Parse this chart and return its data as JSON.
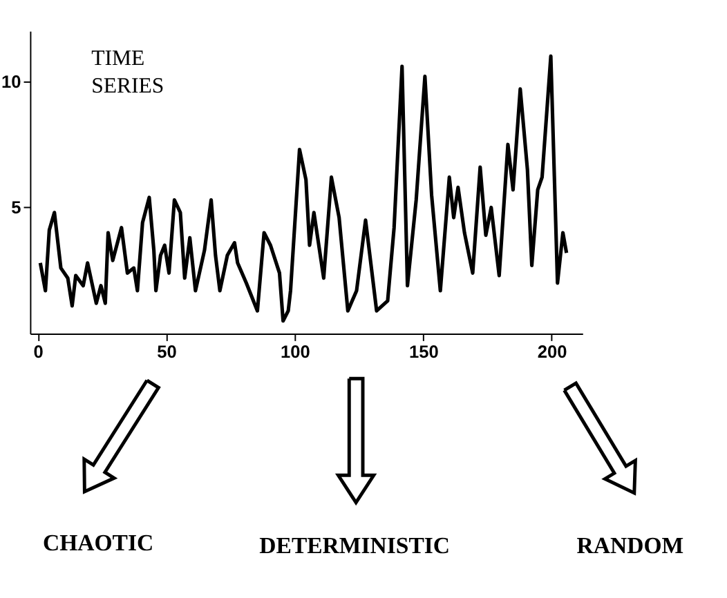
{
  "chart_data": {
    "type": "line",
    "x": [
      1,
      3,
      4.5,
      6.5,
      9,
      11.7,
      13.4,
      14.8,
      17.7,
      19.4,
      22.8,
      24.6,
      26.3,
      27.4,
      29.2,
      32.6,
      34.9,
      37.4,
      38.8,
      40.8,
      43.4,
      45.2,
      46,
      47.8,
      49.4,
      51.1,
      53.2,
      55.5,
      57.2,
      59.2,
      61.4,
      64.9,
      67.5,
      69.2,
      70.9,
      73.8,
      76.6,
      77.8,
      81.2,
      85.5,
      88.1,
      90.6,
      94.1,
      95.5,
      97.5,
      98.4,
      101.9,
      104.4,
      105.8,
      107.5,
      111.3,
      114.3,
      117.3,
      120.7,
      124.1,
      127.6,
      131.9,
      136.2,
      138.7,
      141.8,
      143.9,
      147.3,
      150.7,
      153.3,
      156.7,
      160.2,
      161.9,
      163.6,
      166.1,
      169.3,
      172.2,
      174.4,
      176.5,
      179.6,
      183,
      185,
      187.8,
      190.6,
      192.3,
      194.6,
      196.3,
      199.7,
      202.3,
      204.4,
      205.8
    ],
    "series": [
      {
        "color": "#000000",
        "values": [
          2.8,
          1.7,
          4.1,
          4.8,
          2.6,
          2.2,
          1.1,
          2.3,
          1.9,
          2.8,
          1.2,
          1.9,
          1.2,
          4.0,
          2.9,
          4.2,
          2.4,
          2.6,
          1.7,
          4.4,
          5.4,
          3.3,
          1.7,
          3.1,
          3.5,
          2.4,
          5.3,
          4.8,
          2.2,
          3.8,
          1.7,
          3.3,
          5.3,
          3.1,
          1.7,
          3.1,
          3.6,
          2.8,
          2.0,
          0.9,
          4.0,
          3.5,
          2.4,
          0.5,
          0.9,
          1.7,
          7.3,
          6.1,
          3.5,
          4.8,
          2.2,
          6.2,
          4.6,
          0.9,
          1.7,
          4.5,
          0.9,
          1.3,
          4.2,
          10.6,
          1.9,
          5.3,
          10.2,
          5.5,
          1.7,
          6.2,
          4.6,
          5.8,
          4.0,
          2.4,
          6.6,
          3.9,
          5.0,
          2.3,
          7.5,
          5.7,
          9.7,
          6.5,
          2.7,
          5.7,
          6.2,
          11.0,
          2.0,
          4.0,
          3.2
        ]
      }
    ],
    "xlim": [
      -3,
      212
    ],
    "ylim": [
      0,
      12
    ],
    "xticks": [
      0,
      50,
      100,
      150,
      200
    ],
    "yticks": [
      5,
      10
    ],
    "grid": false,
    "marker": "none",
    "line_style": "solid",
    "annotations": [
      "TIME SERIES",
      "CHAOTIC",
      "DETERMINISTIC",
      "RANDOM"
    ]
  }
}
